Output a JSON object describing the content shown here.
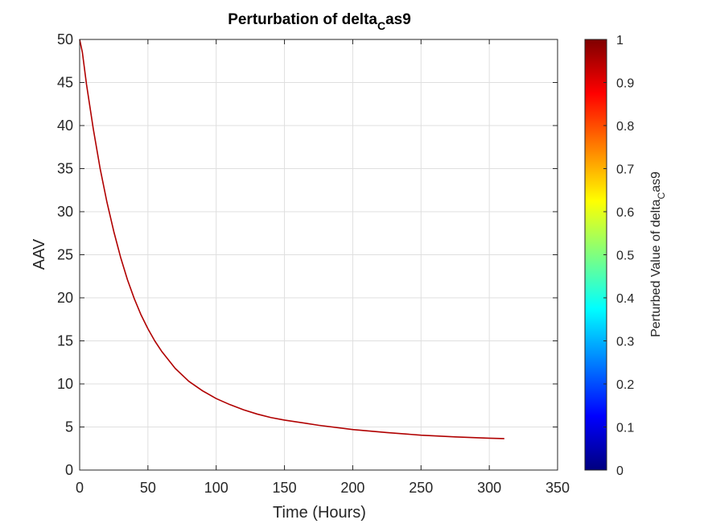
{
  "chart_data": {
    "type": "line",
    "title": {
      "main": "Perturbation of delta",
      "sub": "C",
      "tail": "as9"
    },
    "xlabel": "Time (Hours)",
    "ylabel": "AAV",
    "xlim": [
      0,
      350
    ],
    "ylim": [
      0,
      50
    ],
    "x_ticks": [
      "0",
      "50",
      "100",
      "150",
      "200",
      "250",
      "300",
      "350"
    ],
    "y_ticks": [
      "0",
      "5",
      "10",
      "15",
      "20",
      "25",
      "30",
      "35",
      "40",
      "45",
      "50"
    ],
    "grid": true,
    "line_color": "#b00000",
    "series": [
      {
        "x": [
          0,
          2,
          5,
          10,
          15,
          20,
          25,
          30,
          35,
          40,
          45,
          50,
          55,
          60,
          70,
          80,
          90,
          100,
          110,
          120,
          130,
          140,
          150,
          175,
          200,
          225,
          250,
          275,
          300,
          311
        ],
        "y": [
          50,
          48.5,
          44.8,
          39.6,
          35.0,
          31.1,
          27.7,
          24.7,
          22.1,
          19.9,
          18.0,
          16.4,
          15.0,
          13.8,
          11.8,
          10.3,
          9.2,
          8.3,
          7.6,
          7.0,
          6.5,
          6.1,
          5.8,
          5.2,
          4.7,
          4.35,
          4.05,
          3.85,
          3.7,
          3.65
        ]
      }
    ],
    "colorbar": {
      "label": {
        "main": "Perturbed Value of delta",
        "sub": "C",
        "tail": "as9"
      },
      "range": [
        0,
        1
      ],
      "ticks": [
        "0",
        "0.1",
        "0.2",
        "0.3",
        "0.4",
        "0.5",
        "0.6",
        "0.7",
        "0.8",
        "0.9",
        "1"
      ],
      "colormap": "jet",
      "colors": [
        "#00007f",
        "#0000ff",
        "#007fff",
        "#00ffff",
        "#7fff7f",
        "#ffff00",
        "#ff7f00",
        "#ff0000",
        "#7f0000"
      ]
    }
  }
}
